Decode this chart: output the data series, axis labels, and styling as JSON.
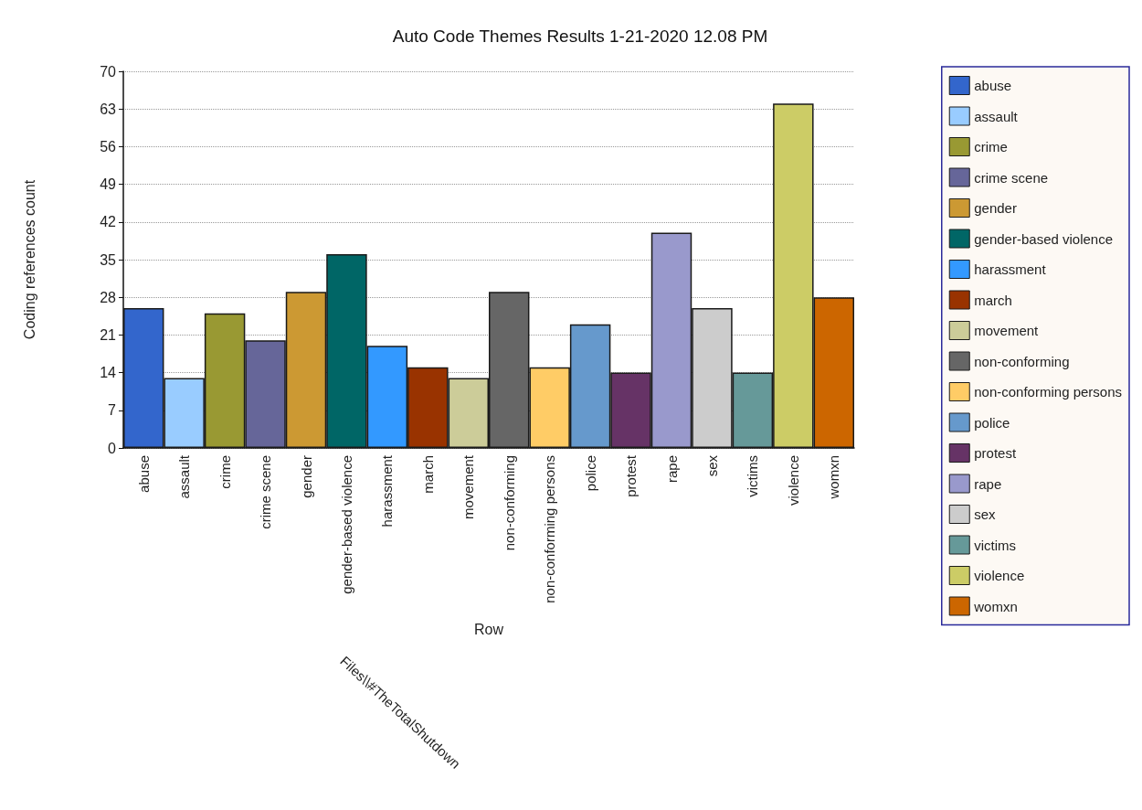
{
  "chart_data": {
    "type": "bar",
    "title": "Auto Code Themes Results 1-21-2020 12.08 PM",
    "xlabel": "Row",
    "ylabel": "Coding references count",
    "annotations": [
      "Files\\\\#TheTotalShutdown"
    ],
    "categories": [
      "abuse",
      "assault",
      "crime",
      "crime scene",
      "gender",
      "gender-based violence",
      "harassment",
      "march",
      "movement",
      "non-conforming",
      "non-conforming persons",
      "police",
      "protest",
      "rape",
      "sex",
      "victims",
      "violence",
      "womxn"
    ],
    "series": [
      {
        "name": "abuse",
        "color": "#3366cc",
        "values": [
          26,
          null,
          null,
          null,
          null,
          null,
          null,
          null,
          null,
          null,
          null,
          null,
          null,
          null,
          null,
          null,
          null,
          null
        ]
      },
      {
        "name": "assault",
        "color": "#99ccff",
        "values": [
          null,
          13,
          null,
          null,
          null,
          null,
          null,
          null,
          null,
          null,
          null,
          null,
          null,
          null,
          null,
          null,
          null,
          null
        ]
      },
      {
        "name": "crime",
        "color": "#999933",
        "values": [
          null,
          null,
          25,
          null,
          null,
          null,
          null,
          null,
          null,
          null,
          null,
          null,
          null,
          null,
          null,
          null,
          null,
          null
        ]
      },
      {
        "name": "crime scene",
        "color": "#666699",
        "values": [
          null,
          null,
          null,
          20,
          null,
          null,
          null,
          null,
          null,
          null,
          null,
          null,
          null,
          null,
          null,
          null,
          null,
          null
        ]
      },
      {
        "name": "gender",
        "color": "#cc9933",
        "values": [
          null,
          null,
          null,
          null,
          29,
          null,
          null,
          null,
          null,
          null,
          null,
          null,
          null,
          null,
          null,
          null,
          null,
          null
        ]
      },
      {
        "name": "gender-based violence",
        "color": "#006666",
        "values": [
          null,
          null,
          null,
          null,
          null,
          36,
          null,
          null,
          null,
          null,
          null,
          null,
          null,
          null,
          null,
          null,
          null,
          null
        ]
      },
      {
        "name": "harassment",
        "color": "#3399ff",
        "values": [
          null,
          null,
          null,
          null,
          null,
          null,
          19,
          null,
          null,
          null,
          null,
          null,
          null,
          null,
          null,
          null,
          null,
          null
        ]
      },
      {
        "name": "march",
        "color": "#993300",
        "values": [
          null,
          null,
          null,
          null,
          null,
          null,
          null,
          15,
          null,
          null,
          null,
          null,
          null,
          null,
          null,
          null,
          null,
          null
        ]
      },
      {
        "name": "movement",
        "color": "#cccc99",
        "values": [
          null,
          null,
          null,
          null,
          null,
          null,
          null,
          null,
          13,
          null,
          null,
          null,
          null,
          null,
          null,
          null,
          null,
          null
        ]
      },
      {
        "name": "non-conforming",
        "color": "#666666",
        "values": [
          null,
          null,
          null,
          null,
          null,
          null,
          null,
          null,
          null,
          29,
          null,
          null,
          null,
          null,
          null,
          null,
          null,
          null
        ]
      },
      {
        "name": "non-conforming persons",
        "color": "#ffcc66",
        "values": [
          null,
          null,
          null,
          null,
          null,
          null,
          null,
          null,
          null,
          null,
          15,
          null,
          null,
          null,
          null,
          null,
          null,
          null
        ]
      },
      {
        "name": "police",
        "color": "#6699cc",
        "values": [
          null,
          null,
          null,
          null,
          null,
          null,
          null,
          null,
          null,
          null,
          null,
          23,
          null,
          null,
          null,
          null,
          null,
          null
        ]
      },
      {
        "name": "protest",
        "color": "#663366",
        "values": [
          null,
          null,
          null,
          null,
          null,
          null,
          null,
          null,
          null,
          null,
          null,
          null,
          14,
          null,
          null,
          null,
          null,
          null
        ]
      },
      {
        "name": "rape",
        "color": "#9999cc",
        "values": [
          null,
          null,
          null,
          null,
          null,
          null,
          null,
          null,
          null,
          null,
          null,
          null,
          null,
          40,
          null,
          null,
          null,
          null
        ]
      },
      {
        "name": "sex",
        "color": "#cccccc",
        "values": [
          null,
          null,
          null,
          null,
          null,
          null,
          null,
          null,
          null,
          null,
          null,
          null,
          null,
          null,
          26,
          null,
          null,
          null
        ]
      },
      {
        "name": "victims",
        "color": "#669999",
        "values": [
          null,
          null,
          null,
          null,
          null,
          null,
          null,
          null,
          null,
          null,
          null,
          null,
          null,
          null,
          null,
          14,
          null,
          null
        ]
      },
      {
        "name": "violence",
        "color": "#cccc66",
        "values": [
          null,
          null,
          null,
          null,
          null,
          null,
          null,
          null,
          null,
          null,
          null,
          null,
          null,
          null,
          null,
          null,
          64,
          null
        ]
      },
      {
        "name": "womxn",
        "color": "#cc6600",
        "values": [
          null,
          null,
          null,
          null,
          null,
          null,
          null,
          null,
          null,
          null,
          null,
          null,
          null,
          null,
          null,
          null,
          null,
          28
        ]
      }
    ],
    "ylim": [
      0,
      70
    ],
    "yticks": [
      0,
      7,
      14,
      21,
      28,
      35,
      42,
      49,
      56,
      63,
      70
    ],
    "grid": "y",
    "legend": "right"
  }
}
